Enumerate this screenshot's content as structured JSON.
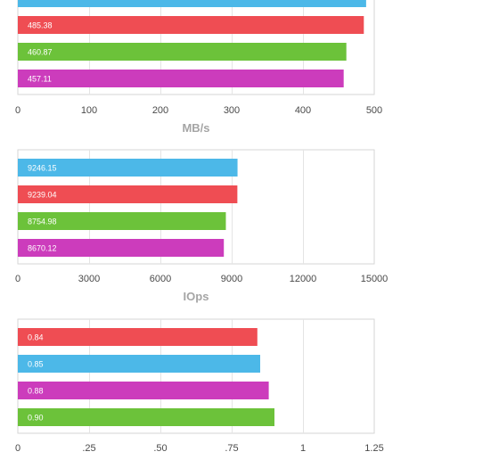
{
  "chart_data": [
    {
      "type": "bar",
      "orientation": "horizontal",
      "xlabel": "MB/s",
      "xlim": [
        0,
        500
      ],
      "ticks": [
        0,
        100,
        200,
        300,
        400,
        500
      ],
      "tick_labels": [
        "0",
        "100",
        "200",
        "300",
        "400",
        "500"
      ],
      "bars": [
        {
          "value": 488.6,
          "label": "",
          "color": "#4cb8e8"
        },
        {
          "value": 485.38,
          "label": "485.38",
          "color": "#ef4d53"
        },
        {
          "value": 460.87,
          "label": "460.87",
          "color": "#6cc23a"
        },
        {
          "value": 457.11,
          "label": "457.11",
          "color": "#cc3cbc"
        }
      ],
      "grid": true
    },
    {
      "type": "bar",
      "orientation": "horizontal",
      "xlabel": "IOps",
      "xlim": [
        0,
        15000
      ],
      "ticks": [
        0,
        3000,
        6000,
        9000,
        12000,
        15000
      ],
      "tick_labels": [
        "0",
        "3000",
        "6000",
        "9000",
        "12000",
        "15000"
      ],
      "bars": [
        {
          "value": 9246.15,
          "label": "9246.15",
          "color": "#4cb8e8"
        },
        {
          "value": 9239.04,
          "label": "9239.04",
          "color": "#ef4d53"
        },
        {
          "value": 8754.98,
          "label": "8754.98",
          "color": "#6cc23a"
        },
        {
          "value": 8670.12,
          "label": "8670.12",
          "color": "#cc3cbc"
        }
      ],
      "grid": true
    },
    {
      "type": "bar",
      "orientation": "horizontal",
      "xlabel": "",
      "xlim": [
        0,
        1.25
      ],
      "ticks": [
        0,
        0.25,
        0.5,
        0.75,
        1,
        1.25
      ],
      "tick_labels": [
        "0",
        ".25",
        ".50",
        ".75",
        "1",
        "1.25"
      ],
      "bars": [
        {
          "value": 0.84,
          "label": "0.84",
          "color": "#ef4d53"
        },
        {
          "value": 0.85,
          "label": "0.85",
          "color": "#4cb8e8"
        },
        {
          "value": 0.88,
          "label": "0.88",
          "color": "#cc3cbc"
        },
        {
          "value": 0.9,
          "label": "0.90",
          "color": "#6cc23a"
        }
      ],
      "grid": true
    }
  ]
}
